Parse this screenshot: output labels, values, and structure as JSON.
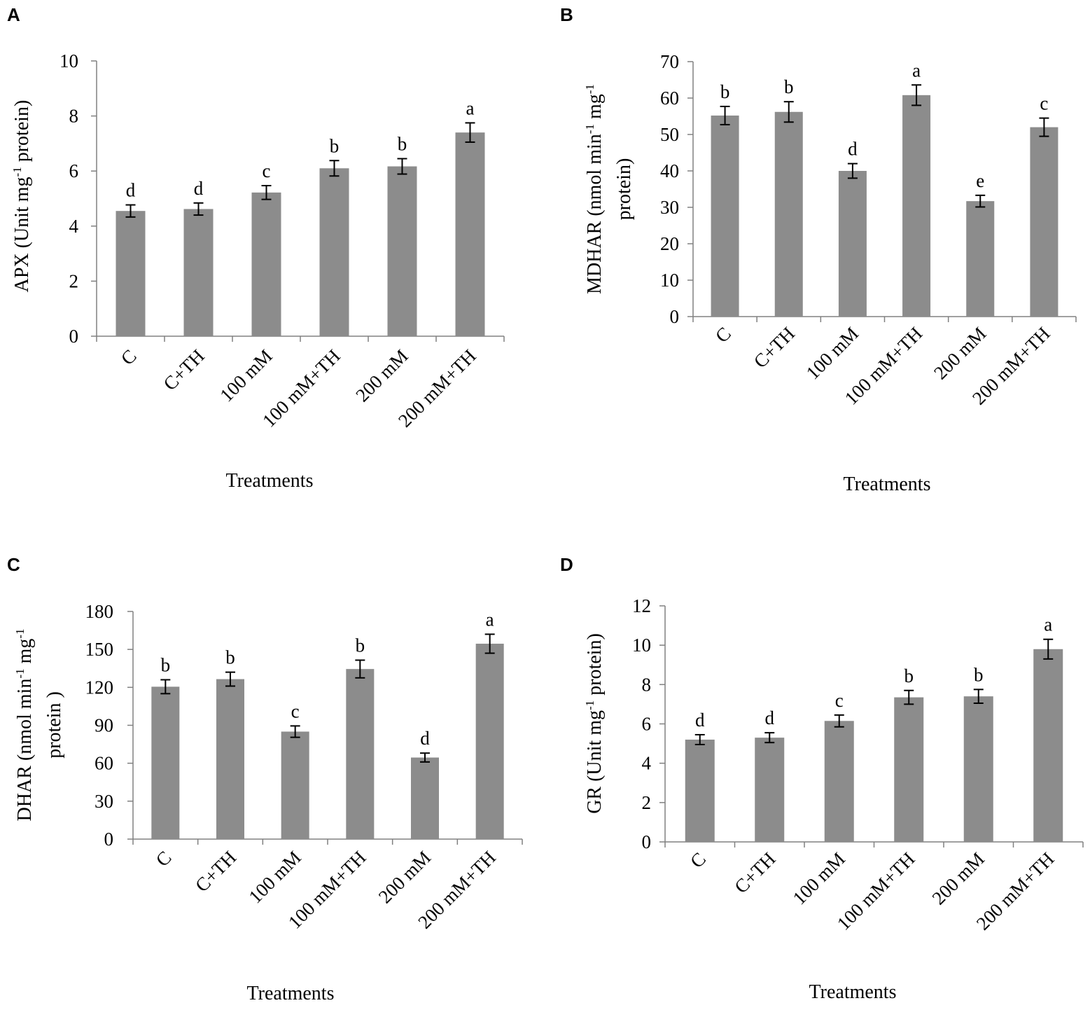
{
  "chart_data": [
    {
      "panel": "A",
      "type": "bar",
      "categories": [
        "C",
        "C+TH",
        "100 mM",
        "100 mM+TH",
        "200 mM",
        "200 mM+TH"
      ],
      "values": [
        4.55,
        4.62,
        5.22,
        6.1,
        6.17,
        7.4
      ],
      "errors": [
        0.22,
        0.22,
        0.25,
        0.28,
        0.28,
        0.35
      ],
      "significance": [
        "d",
        "d",
        "c",
        "b",
        "b",
        "a"
      ],
      "ylabel_parts": [
        "APX (Unit mg",
        "-1",
        " protein)"
      ],
      "xlabel": "Treatments",
      "ylim": [
        0,
        10
      ],
      "yticks": [
        0,
        2,
        4,
        6,
        8,
        10
      ]
    },
    {
      "panel": "B",
      "type": "bar",
      "categories": [
        "C",
        "C+TH",
        "100 mM",
        "100 mM+TH",
        "200 mM",
        "200 mM+TH"
      ],
      "values": [
        55.2,
        56.2,
        40,
        60.8,
        31.7,
        52
      ],
      "errors": [
        2.5,
        2.8,
        2.0,
        2.8,
        1.6,
        2.5
      ],
      "significance": [
        "b",
        "b",
        "d",
        "a",
        "e",
        "c"
      ],
      "ylabel_line1_parts": [
        "MDHAR (nmol min",
        "-1",
        " mg",
        "-1"
      ],
      "ylabel_line2": "protein)",
      "xlabel": "Treatments",
      "ylim": [
        0,
        70
      ],
      "yticks": [
        0,
        10,
        20,
        30,
        40,
        50,
        60,
        70
      ]
    },
    {
      "panel": "C",
      "type": "bar",
      "categories": [
        "C",
        "C+TH",
        "100 mM",
        "100 mM+TH",
        "200 mM",
        "200 mM+TH"
      ],
      "values": [
        120.5,
        126.5,
        85,
        134.5,
        64.5,
        154.5
      ],
      "errors": [
        5.5,
        5.5,
        4.5,
        7,
        3.5,
        7.5
      ],
      "significance": [
        "b",
        "b",
        "c",
        "b",
        "d",
        "a"
      ],
      "ylabel_line1_parts": [
        "DHAR (nmol min",
        "-1",
        " mg",
        "-1"
      ],
      "ylabel_line2": "protein )",
      "xlabel": "Treatments",
      "ylim": [
        0,
        180
      ],
      "yticks": [
        0,
        30,
        60,
        90,
        120,
        150,
        180
      ]
    },
    {
      "panel": "D",
      "type": "bar",
      "categories": [
        "C",
        "C+TH",
        "100 mM",
        "100 mM+TH",
        "200 mM",
        "200 mM+TH"
      ],
      "values": [
        5.2,
        5.3,
        6.15,
        7.35,
        7.4,
        9.8
      ],
      "errors": [
        0.25,
        0.25,
        0.3,
        0.35,
        0.35,
        0.5
      ],
      "significance": [
        "d",
        "d",
        "c",
        "b",
        "b",
        "a"
      ],
      "ylabel_parts": [
        "GR (Unit mg",
        "-1",
        " protein)"
      ],
      "xlabel": "Treatments",
      "ylim": [
        0,
        12
      ],
      "yticks": [
        0,
        2,
        4,
        6,
        8,
        10,
        12
      ]
    }
  ],
  "colors": {
    "bar": "#8c8c8c",
    "axis": "#808080",
    "error_bar": "#000000"
  }
}
